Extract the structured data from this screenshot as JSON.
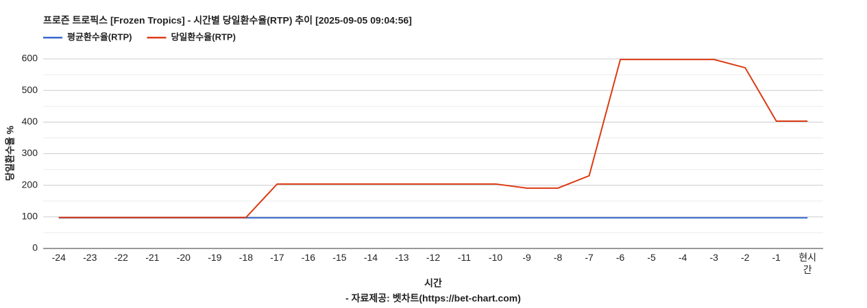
{
  "chart_data": {
    "type": "line",
    "title": "프로즌 트로픽스 [Frozen Tropics] - 시간별 당일환수율(RTP) 추이 [2025-09-05 09:04:56]",
    "x_label": "시간",
    "y_label": "당일환수율 %",
    "footer": "- 자료제공: 벳차트(https://bet-chart.com)",
    "categories": [
      "-24",
      "-23",
      "-22",
      "-21",
      "-20",
      "-19",
      "-18",
      "-17",
      "-16",
      "-15",
      "-14",
      "-13",
      "-12",
      "-11",
      "-10",
      "-9",
      "-8",
      "-7",
      "-6",
      "-5",
      "-4",
      "-3",
      "-2",
      "-1",
      "현시간"
    ],
    "series": [
      {
        "name": "평균환수율(RTP)",
        "color": "#3366cc",
        "values": [
          97,
          97,
          97,
          97,
          97,
          97,
          97,
          97,
          97,
          97,
          97,
          97,
          97,
          97,
          97,
          97,
          97,
          97,
          97,
          97,
          97,
          97,
          97,
          97,
          97
        ]
      },
      {
        "name": "당일환수율(RTP)",
        "color": "#dc3912",
        "values": [
          98,
          98,
          98,
          98,
          98,
          98,
          98,
          204,
          204,
          204,
          204,
          204,
          204,
          204,
          204,
          191,
          191,
          230,
          598,
          598,
          598,
          598,
          572,
          403,
          403
        ]
      }
    ],
    "ylim": [
      0,
      600
    ],
    "yticks": [
      0,
      100,
      200,
      300,
      400,
      500,
      600
    ],
    "minor_yticks": [
      50,
      150,
      250,
      350,
      450,
      550
    ],
    "grid": true,
    "legend": "top-left"
  }
}
